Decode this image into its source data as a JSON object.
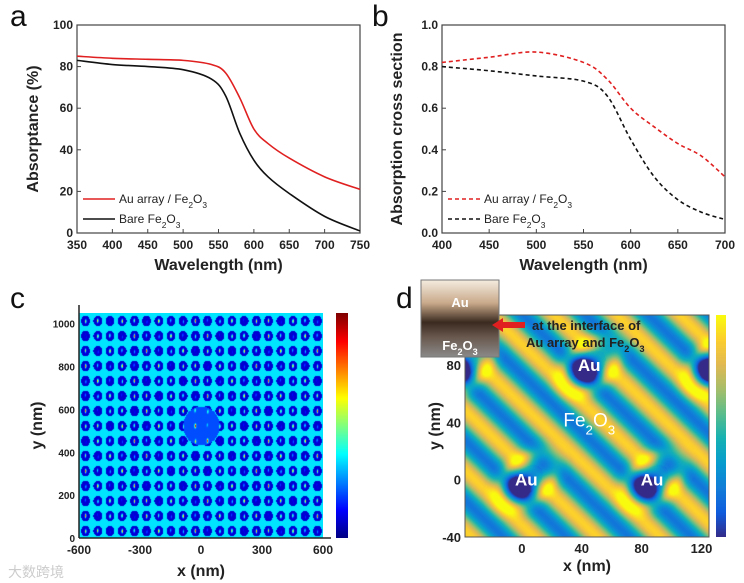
{
  "chart_data": [
    {
      "panel": "a",
      "type": "line",
      "xlabel": "Wavelength (nm)",
      "ylabel": "Absorptance (%)",
      "xlim": [
        350,
        750
      ],
      "ylim": [
        0,
        100
      ],
      "xticks": [
        350,
        400,
        450,
        500,
        550,
        600,
        650,
        700,
        750
      ],
      "yticks": [
        0,
        20,
        40,
        60,
        80,
        100
      ],
      "legend_position": "bottom-left",
      "series": [
        {
          "name": "Au array / Fe2O3",
          "color": "#e02020",
          "dash": false,
          "x": [
            350,
            400,
            450,
            500,
            540,
            560,
            580,
            600,
            620,
            650,
            700,
            750
          ],
          "y": [
            85,
            84,
            83.5,
            83,
            81,
            77,
            65,
            50,
            43,
            36,
            27,
            21
          ]
        },
        {
          "name": "Bare Fe2O3",
          "color": "#111111",
          "dash": false,
          "x": [
            350,
            400,
            450,
            500,
            540,
            560,
            580,
            600,
            620,
            650,
            700,
            750
          ],
          "y": [
            83,
            81,
            80,
            78.5,
            74,
            66,
            48,
            35,
            27,
            19,
            8,
            1
          ]
        }
      ]
    },
    {
      "panel": "b",
      "type": "line",
      "xlabel": "Wavelength (nm)",
      "ylabel": "Absorption cross section",
      "xlim": [
        400,
        700
      ],
      "ylim": [
        0,
        1
      ],
      "xticks": [
        400,
        450,
        500,
        550,
        600,
        650,
        700
      ],
      "yticks": [
        "0.0",
        "0.2",
        "0.4",
        "0.6",
        "0.8",
        "1.0"
      ],
      "legend_position": "bottom-left",
      "series": [
        {
          "name": "Au array / Fe2O3",
          "color": "#e02020",
          "dash": true,
          "x": [
            400,
            450,
            500,
            550,
            575,
            600,
            625,
            650,
            675,
            700
          ],
          "y": [
            0.82,
            0.845,
            0.87,
            0.82,
            0.74,
            0.6,
            0.51,
            0.43,
            0.37,
            0.27
          ]
        },
        {
          "name": "Bare Fe2O3",
          "color": "#111111",
          "dash": true,
          "x": [
            400,
            450,
            500,
            550,
            575,
            600,
            625,
            650,
            675,
            700
          ],
          "y": [
            0.8,
            0.78,
            0.755,
            0.73,
            0.66,
            0.45,
            0.27,
            0.16,
            0.1,
            0.065
          ]
        }
      ]
    },
    {
      "panel": "c",
      "type": "heatmap",
      "xlabel": "x (nm)",
      "ylabel": "y (nm)",
      "xlim": [
        -600,
        600
      ],
      "ylim": [
        0,
        1050
      ],
      "xticks": [
        -600,
        -300,
        0,
        300,
        600
      ],
      "yticks": [
        0,
        200,
        400,
        600,
        800,
        1000
      ],
      "colormap": "jet"
    },
    {
      "panel": "d",
      "type": "heatmap",
      "xlabel": "x (nm)",
      "ylabel": "y (nm)",
      "xlim": [
        -38,
        125
      ],
      "ylim": [
        -40,
        115
      ],
      "xticks": [
        0,
        40,
        80,
        120
      ],
      "yticks": [
        -40,
        0,
        40,
        80
      ],
      "colormap": "parula",
      "annotations": [
        "Au",
        "Au",
        "Au",
        "Fe2O3"
      ],
      "inset": {
        "top_label": "Au",
        "bottom_label": "Fe2O3"
      },
      "arrow_note": [
        "at the interface of",
        "Au array and Fe2O3"
      ]
    }
  ],
  "labels": {
    "a": "a",
    "b": "b",
    "c": "c",
    "d": "d"
  },
  "watermark": "大数跨境"
}
